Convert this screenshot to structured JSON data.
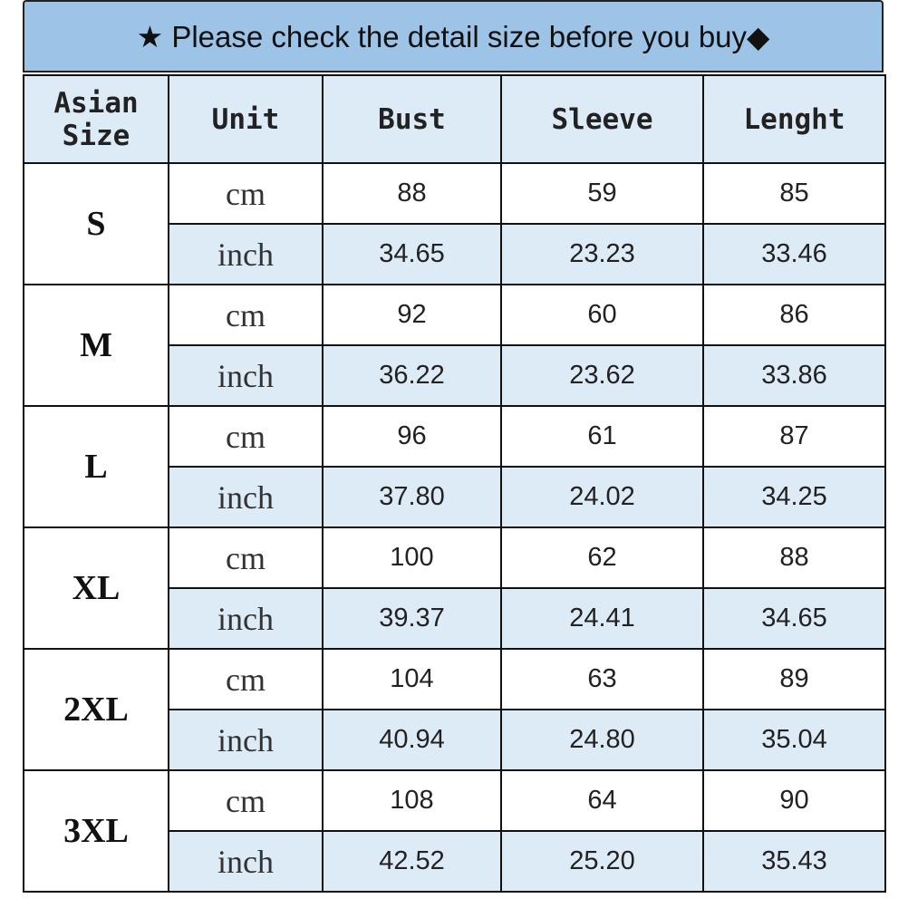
{
  "title": "★ Please check the detail size before you buy◆",
  "colors": {
    "title_bg": "#9dc3e6",
    "header_bg": "#ddebf7",
    "alt_row_bg": "#ddebf7"
  },
  "headers": [
    "Asian Size",
    "Unit",
    "Bust",
    "Sleeve",
    "Lenght"
  ],
  "sizes": [
    {
      "size": "S",
      "rows": [
        {
          "unit": "cm",
          "bust": "88",
          "sleeve": "59",
          "length": "85"
        },
        {
          "unit": "inch",
          "bust": "34.65",
          "sleeve": "23.23",
          "length": "33.46"
        }
      ]
    },
    {
      "size": "M",
      "rows": [
        {
          "unit": "cm",
          "bust": "92",
          "sleeve": "60",
          "length": "86"
        },
        {
          "unit": "inch",
          "bust": "36.22",
          "sleeve": "23.62",
          "length": "33.86"
        }
      ]
    },
    {
      "size": "L",
      "rows": [
        {
          "unit": "cm",
          "bust": "96",
          "sleeve": "61",
          "length": "87"
        },
        {
          "unit": "inch",
          "bust": "37.80",
          "sleeve": "24.02",
          "length": "34.25"
        }
      ]
    },
    {
      "size": "XL",
      "rows": [
        {
          "unit": "cm",
          "bust": "100",
          "sleeve": "62",
          "length": "88"
        },
        {
          "unit": "inch",
          "bust": "39.37",
          "sleeve": "24.41",
          "length": "34.65"
        }
      ]
    },
    {
      "size": "2XL",
      "rows": [
        {
          "unit": "cm",
          "bust": "104",
          "sleeve": "63",
          "length": "89"
        },
        {
          "unit": "inch",
          "bust": "40.94",
          "sleeve": "24.80",
          "length": "35.04"
        }
      ]
    },
    {
      "size": "3XL",
      "rows": [
        {
          "unit": "cm",
          "bust": "108",
          "sleeve": "64",
          "length": "90"
        },
        {
          "unit": "inch",
          "bust": "42.52",
          "sleeve": "25.20",
          "length": "35.43"
        }
      ]
    }
  ]
}
